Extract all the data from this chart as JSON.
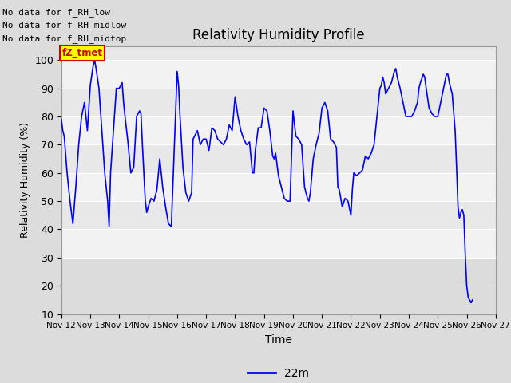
{
  "title": "Relativity Humidity Profile",
  "xlabel": "Time",
  "ylabel": "Relativity Humidity (%)",
  "ylim": [
    10,
    105
  ],
  "yticks": [
    10,
    20,
    30,
    40,
    50,
    60,
    70,
    80,
    90,
    100
  ],
  "line_color": "#0000FF",
  "line_label": "22m",
  "fig_bg_color": "#DCDCDC",
  "plot_bg_light": "#F0F0F0",
  "plot_bg_dark": "#E0E0E0",
  "plot_bg_lower": "#DCDCDC",
  "annotations": [
    "No data for f_RH_low",
    "No data for f_RH_midlow",
    "No data for f_RH_midtop"
  ],
  "legend_label_color": "#CC0000",
  "legend_bg": "#FFFF00",
  "xtick_labels": [
    "Nov 12",
    "Nov 13",
    "Nov 14",
    "Nov 15",
    "Nov 16",
    "Nov 17",
    "Nov 18",
    "Nov 19",
    "Nov 20",
    "Nov 21",
    "Nov 22",
    "Nov 23",
    "Nov 24",
    "Nov 25",
    "Nov 26",
    "Nov 27"
  ],
  "x_days": [
    12,
    13,
    14,
    15,
    16,
    17,
    18,
    19,
    20,
    21,
    22,
    23,
    24,
    25,
    26,
    27
  ],
  "rh_data": [
    [
      12.0,
      79
    ],
    [
      12.05,
      75
    ],
    [
      12.1,
      73
    ],
    [
      12.2,
      60
    ],
    [
      12.3,
      50
    ],
    [
      12.4,
      42
    ],
    [
      12.5,
      55
    ],
    [
      12.6,
      70
    ],
    [
      12.7,
      80
    ],
    [
      12.8,
      85
    ],
    [
      12.9,
      75
    ],
    [
      13.0,
      91
    ],
    [
      13.1,
      98
    ],
    [
      13.15,
      100
    ],
    [
      13.2,
      97
    ],
    [
      13.3,
      90
    ],
    [
      13.4,
      75
    ],
    [
      13.5,
      60
    ],
    [
      13.6,
      50
    ],
    [
      13.65,
      41
    ],
    [
      13.7,
      60
    ],
    [
      13.8,
      75
    ],
    [
      13.9,
      90
    ],
    [
      14.0,
      90
    ],
    [
      14.1,
      92
    ],
    [
      14.15,
      85
    ],
    [
      14.2,
      80
    ],
    [
      14.3,
      71
    ],
    [
      14.4,
      60
    ],
    [
      14.5,
      62
    ],
    [
      14.6,
      80
    ],
    [
      14.7,
      82
    ],
    [
      14.75,
      81
    ],
    [
      14.8,
      70
    ],
    [
      14.9,
      50
    ],
    [
      14.95,
      46
    ],
    [
      15.0,
      48
    ],
    [
      15.1,
      51
    ],
    [
      15.2,
      50
    ],
    [
      15.3,
      54
    ],
    [
      15.4,
      65
    ],
    [
      15.5,
      55
    ],
    [
      15.6,
      48
    ],
    [
      15.7,
      42
    ],
    [
      15.8,
      41
    ],
    [
      16.0,
      96
    ],
    [
      16.05,
      91
    ],
    [
      16.1,
      80
    ],
    [
      16.2,
      62
    ],
    [
      16.3,
      53
    ],
    [
      16.4,
      50
    ],
    [
      16.5,
      53
    ],
    [
      16.55,
      72
    ],
    [
      16.6,
      73
    ],
    [
      16.7,
      75
    ],
    [
      16.8,
      70
    ],
    [
      16.9,
      72
    ],
    [
      17.0,
      72
    ],
    [
      17.1,
      68
    ],
    [
      17.2,
      76
    ],
    [
      17.3,
      75
    ],
    [
      17.4,
      72
    ],
    [
      17.5,
      71
    ],
    [
      17.6,
      70
    ],
    [
      17.7,
      72
    ],
    [
      17.8,
      77
    ],
    [
      17.9,
      75
    ],
    [
      18.0,
      87
    ],
    [
      18.1,
      80
    ],
    [
      18.2,
      75
    ],
    [
      18.3,
      72
    ],
    [
      18.4,
      70
    ],
    [
      18.5,
      71
    ],
    [
      18.6,
      60
    ],
    [
      18.65,
      60
    ],
    [
      18.7,
      68
    ],
    [
      18.8,
      76
    ],
    [
      18.9,
      76
    ],
    [
      19.0,
      83
    ],
    [
      19.1,
      82
    ],
    [
      19.2,
      75
    ],
    [
      19.3,
      66
    ],
    [
      19.35,
      65
    ],
    [
      19.4,
      67
    ],
    [
      19.5,
      59
    ],
    [
      19.6,
      55
    ],
    [
      19.7,
      51
    ],
    [
      19.8,
      50
    ],
    [
      19.9,
      50
    ],
    [
      20.0,
      82
    ],
    [
      20.1,
      73
    ],
    [
      20.2,
      72
    ],
    [
      20.3,
      70
    ],
    [
      20.4,
      55
    ],
    [
      20.5,
      51
    ],
    [
      20.55,
      50
    ],
    [
      20.6,
      53
    ],
    [
      20.7,
      65
    ],
    [
      20.8,
      70
    ],
    [
      20.9,
      74
    ],
    [
      21.0,
      83
    ],
    [
      21.1,
      85
    ],
    [
      21.2,
      82
    ],
    [
      21.3,
      72
    ],
    [
      21.4,
      71
    ],
    [
      21.5,
      69
    ],
    [
      21.55,
      55
    ],
    [
      21.6,
      54
    ],
    [
      21.7,
      48
    ],
    [
      21.8,
      51
    ],
    [
      21.9,
      50
    ],
    [
      22.0,
      45
    ],
    [
      22.05,
      54
    ],
    [
      22.1,
      60
    ],
    [
      22.2,
      59
    ],
    [
      22.3,
      60
    ],
    [
      22.4,
      61
    ],
    [
      22.5,
      66
    ],
    [
      22.6,
      65
    ],
    [
      22.7,
      67
    ],
    [
      22.8,
      70
    ],
    [
      22.9,
      80
    ],
    [
      23.0,
      90
    ],
    [
      23.05,
      91
    ],
    [
      23.1,
      94
    ],
    [
      23.15,
      92
    ],
    [
      23.2,
      88
    ],
    [
      23.3,
      90
    ],
    [
      23.4,
      92
    ],
    [
      23.5,
      96
    ],
    [
      23.55,
      97
    ],
    [
      23.6,
      94
    ],
    [
      23.7,
      90
    ],
    [
      23.8,
      85
    ],
    [
      23.9,
      80
    ],
    [
      24.0,
      80
    ],
    [
      24.1,
      80
    ],
    [
      24.2,
      82
    ],
    [
      24.3,
      85
    ],
    [
      24.35,
      90
    ],
    [
      24.4,
      92
    ],
    [
      24.5,
      95
    ],
    [
      24.55,
      94
    ],
    [
      24.6,
      90
    ],
    [
      24.7,
      83
    ],
    [
      24.8,
      81
    ],
    [
      24.9,
      80
    ],
    [
      25.0,
      80
    ],
    [
      25.1,
      85
    ],
    [
      25.2,
      90
    ],
    [
      25.3,
      95
    ],
    [
      25.35,
      95
    ],
    [
      25.4,
      92
    ],
    [
      25.5,
      88
    ],
    [
      25.6,
      75
    ],
    [
      25.65,
      62
    ],
    [
      25.7,
      48
    ],
    [
      25.75,
      44
    ],
    [
      25.8,
      46
    ],
    [
      25.85,
      47
    ],
    [
      25.9,
      45
    ],
    [
      25.95,
      31
    ],
    [
      26.0,
      20
    ],
    [
      26.05,
      16
    ],
    [
      26.1,
      15
    ],
    [
      26.15,
      14
    ],
    [
      26.2,
      15
    ]
  ]
}
